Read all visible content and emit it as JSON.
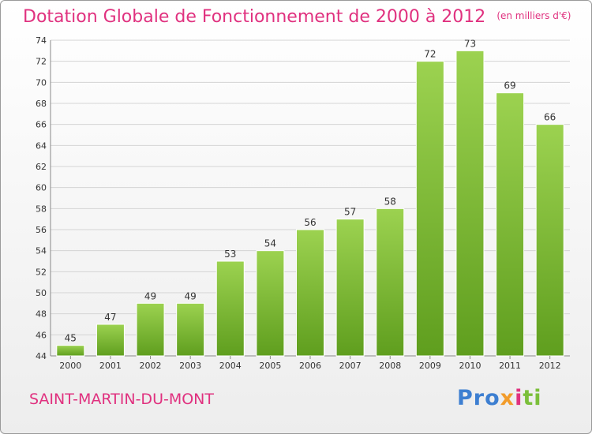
{
  "title": "Dotation Globale de Fonctionnement de 2000 à 2012",
  "subtitle": "(en milliers d'€)",
  "place": "SAINT-MARTIN-DU-MONT",
  "logo": {
    "p1": "Pro",
    "p2": "x",
    "p3": "i",
    "p4": "ti"
  },
  "colors": {
    "title": "#e0317f",
    "bar_top": "#9cd250",
    "bar_bottom": "#5f9e1e",
    "grid": "#d4d4d4"
  },
  "chart_data": {
    "type": "bar",
    "title": "Dotation Globale de Fonctionnement de 2000 à 2012",
    "subtitle": "(en milliers d'€)",
    "categories": [
      "2000",
      "2001",
      "2002",
      "2003",
      "2004",
      "2005",
      "2006",
      "2007",
      "2008",
      "2009",
      "2010",
      "2011",
      "2012"
    ],
    "values": [
      45,
      47,
      49,
      49,
      53,
      54,
      56,
      57,
      58,
      72,
      73,
      69,
      66
    ],
    "ylim": [
      44,
      74
    ],
    "yticks": [
      44,
      46,
      48,
      50,
      52,
      54,
      56,
      58,
      60,
      62,
      64,
      66,
      68,
      70,
      72,
      74
    ],
    "grid": true,
    "xlabel": "",
    "ylabel": ""
  }
}
